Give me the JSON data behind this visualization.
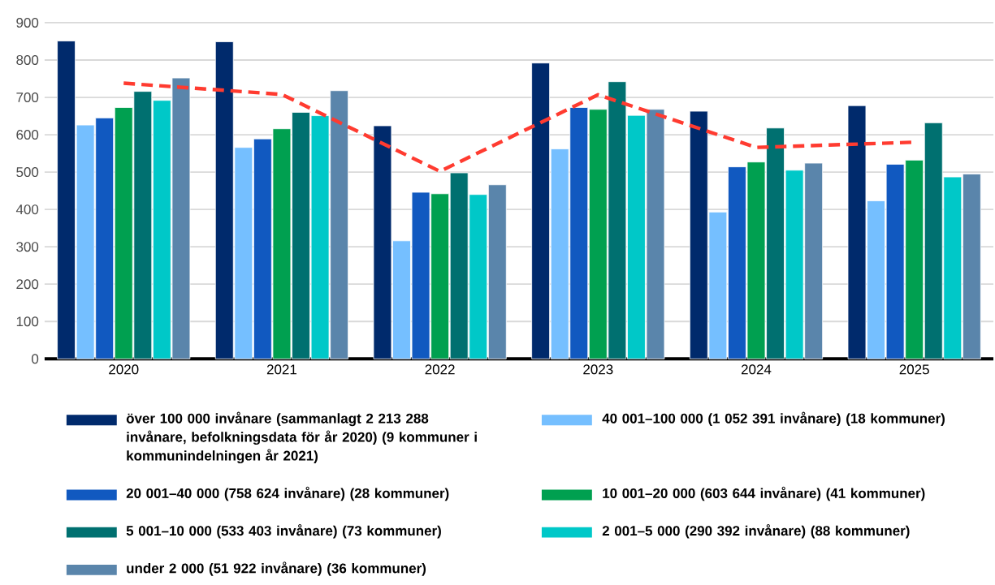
{
  "chart_data": {
    "type": "bar",
    "categories": [
      "2020",
      "2021",
      "2022",
      "2023",
      "2024",
      "2025"
    ],
    "series": [
      {
        "name": "över 100 000 invånare (sammanlagt 2 213 288 invånare, befolkningsdata för år 2020) (9 kommuner i kommunindelningen år 2021)",
        "color": "#002a6c",
        "values": [
          851,
          849,
          624,
          792,
          663,
          678
        ]
      },
      {
        "name": "40 001–100 000 (1 052 391 invånare) (18 kommuner)",
        "color": "#75bfff",
        "values": [
          626,
          566,
          316,
          562,
          393,
          423
        ]
      },
      {
        "name": "20 001–40 000 (758 624 invånare) (28 kommuner)",
        "color": "#1159c0",
        "values": [
          645,
          589,
          446,
          673,
          514,
          521
        ]
      },
      {
        "name": "10 001–20 000 (603 644 invånare) (41 kommuner)",
        "color": "#00a050",
        "values": [
          673,
          616,
          442,
          668,
          527,
          532
        ]
      },
      {
        "name": "5 001–10 000 (533 403 invånare) (73 kommuner)",
        "color": "#007070",
        "values": [
          716,
          660,
          498,
          742,
          618,
          632
        ]
      },
      {
        "name": "2 001–5 000 (290 392 invånare) (88 kommuner)",
        "color": "#00c8c8",
        "values": [
          692,
          651,
          440,
          652,
          505,
          487
        ]
      },
      {
        "name": "under 2 000  (51 922 invånare) (36 kommuner)",
        "color": "#5a85ab",
        "values": [
          752,
          718,
          466,
          668,
          524,
          495
        ]
      },
      {
        "type": "line",
        "color": "#ff3b30",
        "line_style": "dashed",
        "values": [
          738,
          708,
          502,
          707,
          566,
          580
        ]
      }
    ],
    "ylim": [
      0,
      900
    ],
    "yticks": [
      0,
      100,
      200,
      300,
      400,
      500,
      600,
      700,
      800,
      900
    ],
    "grid": "y",
    "legend": "bottom"
  }
}
